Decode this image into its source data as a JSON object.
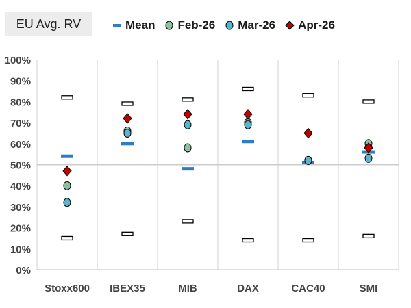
{
  "chart_data": {
    "type": "scatter",
    "title": "EU Avg. RV",
    "categories": [
      "Stoxx600",
      "IBEX35",
      "MIB",
      "DAX",
      "CAC40",
      "SMI"
    ],
    "ylim": [
      0,
      100
    ],
    "yticks": [
      "0%",
      "10%",
      "20%",
      "30%",
      "40%",
      "50%",
      "60%",
      "70%",
      "80%",
      "90%",
      "100%"
    ],
    "reference_line": 50,
    "range_high": [
      82,
      79,
      81,
      86,
      83,
      80
    ],
    "range_low": [
      15,
      17,
      23,
      14,
      14,
      16
    ],
    "series": [
      {
        "name": "Mean",
        "marker": "dash",
        "color": "#2e7cc1",
        "values": [
          54,
          60,
          48,
          61,
          51,
          56
        ]
      },
      {
        "name": "Feb-26",
        "marker": "circle",
        "color": "#8fbfa0",
        "values": [
          40,
          66,
          58,
          70,
          52,
          60
        ]
      },
      {
        "name": "Mar-26",
        "marker": "circle",
        "color": "#5ab4cc",
        "values": [
          32,
          65,
          69,
          69,
          52,
          53
        ]
      },
      {
        "name": "Apr-26",
        "marker": "diamond",
        "color": "#c00000",
        "values": [
          47,
          72,
          74,
          74,
          65,
          58
        ]
      }
    ]
  }
}
